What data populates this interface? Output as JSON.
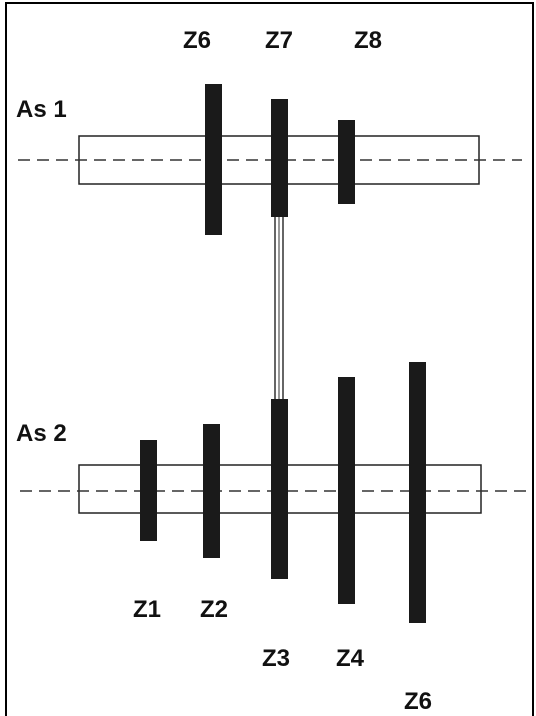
{
  "shafts": {
    "as1": {
      "label": "As 1"
    },
    "as2": {
      "label": "As 2"
    }
  },
  "gears": {
    "as1": [
      {
        "label": "Z6"
      },
      {
        "label": "Z7"
      },
      {
        "label": "Z8"
      }
    ],
    "as2": [
      {
        "label": "Z1"
      },
      {
        "label": "Z2"
      },
      {
        "label": "Z3"
      },
      {
        "label": "Z4"
      },
      {
        "label": "Z6"
      }
    ]
  },
  "colors": {
    "gear": "#1a1a1a",
    "line": "#222222",
    "background": "#ffffff"
  }
}
